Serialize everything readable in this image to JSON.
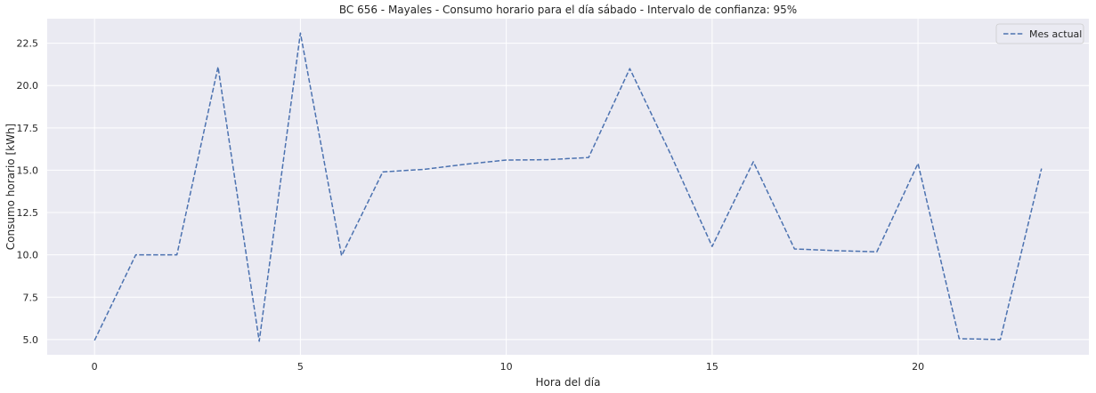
{
  "chart_data": {
    "type": "line",
    "title": "BC 656 - Mayales - Consumo horario para el día sábado - Intervalo de confianza: 95%",
    "xlabel": "Hora del día",
    "ylabel": "Consumo horario [kWh]",
    "xlim": [
      -1.15,
      24.15
    ],
    "ylim": [
      4.1,
      23.95
    ],
    "xticks": [
      0,
      5,
      10,
      15,
      20
    ],
    "yticks": [
      5.0,
      7.5,
      10.0,
      12.5,
      15.0,
      17.5,
      20.0,
      22.5
    ],
    "ytick_labels": [
      "5.0",
      "7.5",
      "10.0",
      "12.5",
      "15.0",
      "17.5",
      "20.0",
      "22.5"
    ],
    "grid": true,
    "legend_position": "top-right",
    "background_color": "#eaeaf2",
    "series": [
      {
        "name": "Mes actual",
        "style": "dashed",
        "color": "#4c72b0",
        "x": [
          0,
          1,
          2,
          3,
          4,
          5,
          6,
          7,
          8,
          9,
          10,
          11,
          12,
          13,
          14,
          15,
          16,
          17,
          18,
          19,
          20,
          21,
          22,
          23
        ],
        "values": [
          4.95,
          10.0,
          10.0,
          21.1,
          4.9,
          23.1,
          9.95,
          14.9,
          15.05,
          15.35,
          15.6,
          15.62,
          15.75,
          21.0,
          15.9,
          10.5,
          15.5,
          10.35,
          10.25,
          10.18,
          15.4,
          5.05,
          5.0,
          15.1
        ]
      }
    ]
  }
}
